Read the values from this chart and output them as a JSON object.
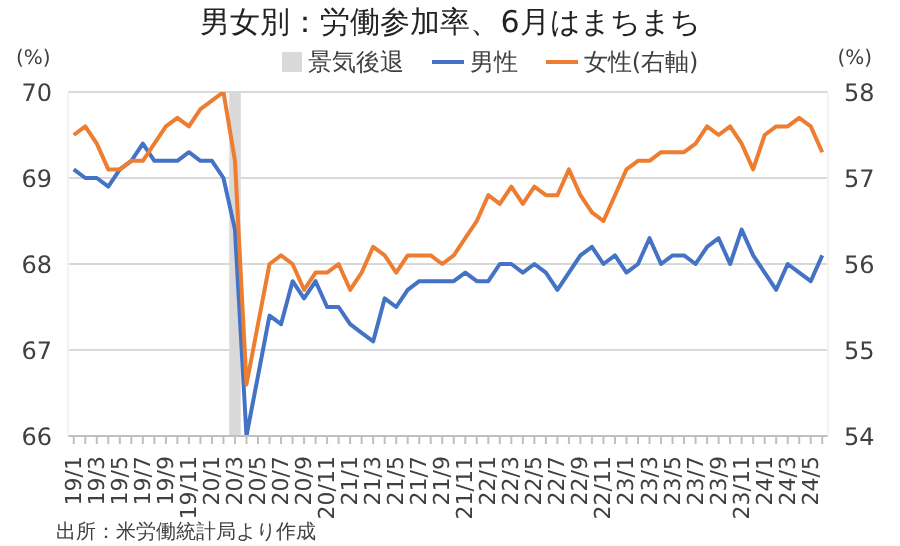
{
  "chart_data": {
    "type": "line",
    "title": "男女別：労働参加率、6月はまちまち",
    "ylabel": "(%)",
    "y2label": "(%)",
    "categories": [
      "19/1",
      null,
      "19/3",
      null,
      "19/5",
      null,
      "19/7",
      null,
      "19/9",
      null,
      "19/11",
      null,
      "20/1",
      null,
      "20/3",
      null,
      "20/5",
      null,
      "20/7",
      null,
      "20/9",
      null,
      "20/11",
      null,
      "21/1",
      null,
      "21/3",
      null,
      "21/5",
      null,
      "21/7",
      null,
      "21/9",
      null,
      "21/11",
      null,
      "22/1",
      null,
      "22/3",
      null,
      "22/5",
      null,
      "22/7",
      null,
      "22/9",
      null,
      "22/11",
      null,
      "23/1",
      null,
      "23/3",
      null,
      "23/5",
      null,
      "23/7",
      null,
      "23/9",
      null,
      "23/11",
      null,
      "24/1",
      null,
      "24/3",
      null,
      "24/5",
      null
    ],
    "series": [
      {
        "name": "男性",
        "color": "#4472c4",
        "values": [
          69.1,
          69.0,
          69.0,
          68.9,
          69.1,
          69.2,
          69.4,
          69.2,
          69.2,
          69.2,
          69.3,
          69.2,
          69.2,
          69.0,
          68.4,
          66.0,
          66.7,
          67.4,
          67.3,
          67.8,
          67.6,
          67.8,
          67.5,
          67.5,
          67.3,
          67.2,
          67.1,
          67.6,
          67.5,
          67.7,
          67.8,
          67.8,
          67.8,
          67.8,
          67.9,
          67.8,
          67.8,
          68.0,
          68.0,
          67.9,
          68.0,
          67.9,
          67.7,
          67.9,
          68.1,
          68.2,
          68.0,
          68.1,
          67.9,
          68.0,
          68.3,
          68.0,
          68.1,
          68.1,
          68.0,
          68.2,
          68.3,
          68.0,
          68.4,
          68.1,
          67.9,
          67.7,
          68.0,
          67.9,
          67.8,
          68.1
        ]
      },
      {
        "name": "女性(右軸)",
        "color": "#ed7d31",
        "axis": "y2",
        "values": [
          57.5,
          57.6,
          57.4,
          57.1,
          57.1,
          57.2,
          57.2,
          57.4,
          57.6,
          57.7,
          57.6,
          57.8,
          57.9,
          58.0,
          57.2,
          54.6,
          55.3,
          56.0,
          56.1,
          56.0,
          55.7,
          55.9,
          55.9,
          56.0,
          55.7,
          55.9,
          56.2,
          56.1,
          55.9,
          56.1,
          56.1,
          56.1,
          56.0,
          56.1,
          56.3,
          56.5,
          56.8,
          56.7,
          56.9,
          56.7,
          56.9,
          56.8,
          56.8,
          57.1,
          56.8,
          56.6,
          56.5,
          56.8,
          57.1,
          57.2,
          57.2,
          57.3,
          57.3,
          57.3,
          57.4,
          57.6,
          57.5,
          57.6,
          57.4,
          57.1,
          57.5,
          57.6,
          57.6,
          57.7,
          57.6,
          57.3
        ]
      }
    ],
    "ylim": [
      66,
      70
    ],
    "yticks": [
      66,
      67,
      68,
      69,
      70
    ],
    "y2lim": [
      54,
      58
    ],
    "y2ticks": [
      54,
      55,
      56,
      57,
      58
    ],
    "bands": [
      {
        "axis": "x",
        "from": "20/3",
        "to": "20/3",
        "label": "景気後退",
        "color": "#d9d9d9"
      }
    ],
    "grid": "y",
    "legend": "top",
    "marker": "none",
    "line_style": "solid",
    "annotations": [
      "出所：米労働統計局より作成"
    ]
  }
}
